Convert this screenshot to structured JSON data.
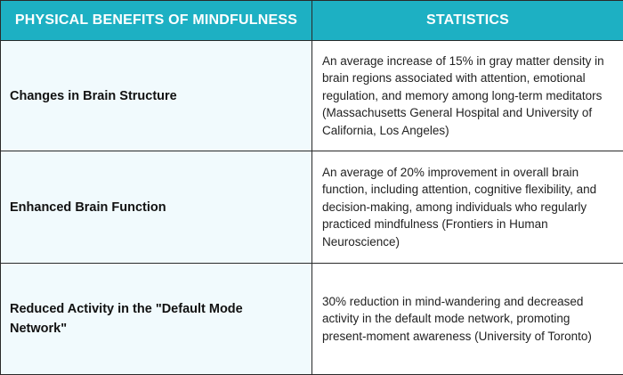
{
  "header": {
    "col1": "PHYSICAL BENEFITS OF MINDFULNESS",
    "col2": "STATISTICS"
  },
  "rows": [
    {
      "benefit": "Changes in Brain Structure",
      "statistic": "An average increase of 15% in gray matter density in brain regions associated with attention, emotional regulation, and memory among long-term meditators (Massachusetts General Hospital and University of California, Los Angeles)"
    },
    {
      "benefit": "Enhanced Brain Function",
      "statistic": "An average of 20% improvement in overall brain function, including attention, cognitive flexibility, and decision-making, among individuals who regularly practiced mindfulness (Frontiers in Human Neuroscience)"
    },
    {
      "benefit": "Reduced Activity in the \"Default Mode Network\"",
      "statistic": "30% reduction in mind-wandering and decreased activity in the default mode network, promoting present-moment awareness (University of Toronto)"
    }
  ],
  "colors": {
    "header_bg": "#1db0c3",
    "header_text": "#ffffff",
    "benefit_bg": "#f1fafd",
    "border": "#2a2a2a"
  }
}
